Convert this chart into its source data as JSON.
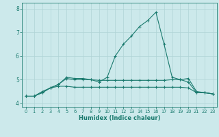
{
  "x": [
    0,
    1,
    2,
    3,
    4,
    5,
    6,
    7,
    8,
    9,
    10,
    11,
    12,
    13,
    14,
    15,
    16,
    17,
    18,
    19,
    20,
    21,
    22,
    23
  ],
  "line1": [
    4.3,
    4.3,
    4.5,
    4.65,
    4.8,
    5.1,
    5.05,
    5.05,
    5.0,
    4.9,
    5.1,
    6.0,
    6.5,
    6.85,
    7.25,
    7.5,
    7.85,
    6.5,
    5.1,
    5.0,
    5.05,
    4.5,
    4.45,
    4.4
  ],
  "line2": [
    4.3,
    4.3,
    4.45,
    4.65,
    4.8,
    5.05,
    5.0,
    5.0,
    5.0,
    4.97,
    4.97,
    4.97,
    4.97,
    4.97,
    4.97,
    4.97,
    4.97,
    4.97,
    5.0,
    5.0,
    4.9,
    4.45,
    4.45,
    4.4
  ],
  "line3": [
    4.3,
    4.3,
    4.45,
    4.65,
    4.72,
    4.72,
    4.68,
    4.68,
    4.68,
    4.68,
    4.68,
    4.68,
    4.68,
    4.68,
    4.68,
    4.68,
    4.68,
    4.68,
    4.68,
    4.68,
    4.65,
    4.45,
    4.45,
    4.4
  ],
  "line_color": "#1a7a6e",
  "bg_color": "#cce9eb",
  "grid_color": "#b0d4d6",
  "xlabel": "Humidex (Indice chaleur)",
  "xlim": [
    -0.5,
    23.5
  ],
  "ylim": [
    3.85,
    8.25
  ],
  "yticks": [
    4,
    5,
    6,
    7,
    8
  ],
  "xticks": [
    0,
    1,
    2,
    3,
    4,
    5,
    6,
    7,
    8,
    9,
    10,
    11,
    12,
    13,
    14,
    15,
    16,
    17,
    18,
    19,
    20,
    21,
    22,
    23
  ]
}
